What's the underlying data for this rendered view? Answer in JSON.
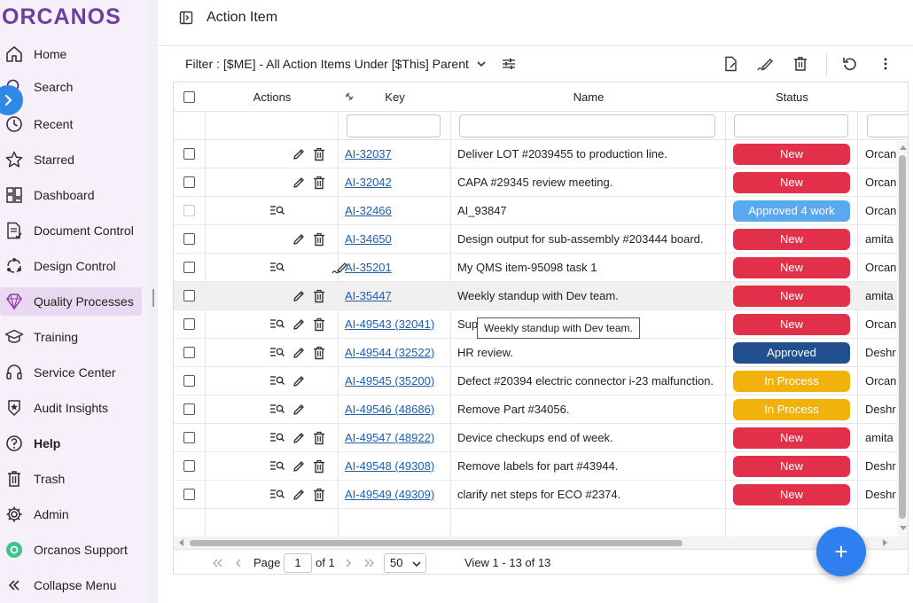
{
  "app": {
    "logo": "ORCANOS"
  },
  "sidebar": {
    "items": [
      {
        "label": "Home",
        "icon": "home-icon"
      },
      {
        "label": "Search",
        "icon": "search-icon"
      },
      {
        "label": "Recent",
        "icon": "clock-icon"
      },
      {
        "label": "Starred",
        "icon": "star-icon"
      },
      {
        "label": "Dashboard",
        "icon": "dashboard-icon"
      },
      {
        "label": "Document Control",
        "icon": "document-icon"
      },
      {
        "label": "Design Control",
        "icon": "design-icon"
      },
      {
        "label": "Quality Processes",
        "icon": "diamond-icon",
        "active": true
      },
      {
        "label": "Training",
        "icon": "graduation-cap-icon"
      },
      {
        "label": "Service Center",
        "icon": "headset-icon"
      },
      {
        "label": "Audit Insights",
        "icon": "badge-icon"
      },
      {
        "label": "Help",
        "icon": "help-icon",
        "bold": true
      },
      {
        "label": "Trash",
        "icon": "trash-icon"
      },
      {
        "label": "Admin",
        "icon": "gear-icon"
      },
      {
        "label": "Orcanos Support",
        "icon": "support-icon"
      },
      {
        "label": "Collapse Menu",
        "icon": "collapse-icon"
      }
    ]
  },
  "header": {
    "title": "Action Item"
  },
  "toolbar": {
    "filter_label": "Filter :",
    "filter_value": "[$ME] - All Action Items Under [$This] Parent"
  },
  "grid": {
    "columns": {
      "actions": "Actions",
      "key": "Key",
      "name": "Name",
      "status": "Status"
    },
    "rows": [
      {
        "key": "AI-32037",
        "name": "Deliver LOT #2039455 to production line.",
        "status": "New",
        "status_color": "#e3304a",
        "owner": "Orcan",
        "actions": [
          "edit",
          "delete"
        ]
      },
      {
        "key": "AI-32042",
        "name": "CAPA #29345 review meeting.",
        "status": "New",
        "status_color": "#e3304a",
        "owner": "Orcan",
        "actions": [
          "edit",
          "delete"
        ]
      },
      {
        "key": "AI-32466",
        "name": "AI_93847",
        "status": "Approved 4 work",
        "status_color": "#5aa8ef",
        "owner": "Orcan",
        "actions": [
          "list"
        ],
        "disabled": true
      },
      {
        "key": "AI-34650",
        "name": "Design output for sub-assembly #203444 board.",
        "status": "New",
        "status_color": "#e3304a",
        "owner": "amita",
        "actions": [
          "edit",
          "delete"
        ]
      },
      {
        "key": "AI-35201",
        "name": "My QMS item-95098 task 1",
        "status": "New",
        "status_color": "#e3304a",
        "owner": "Orcan",
        "actions": [
          "list",
          "sign"
        ]
      },
      {
        "key": "AI-35447",
        "name": "Weekly  standup with Dev team.",
        "status": "New",
        "status_color": "#e3304a",
        "owner": "amita",
        "actions": [
          "edit",
          "delete"
        ],
        "hover": true
      },
      {
        "key": "AI-49543 (32041)",
        "name": "Sup",
        "status": "New",
        "status_color": "#e3304a",
        "owner": "Orcan",
        "actions": [
          "list",
          "edit",
          "delete"
        ]
      },
      {
        "key": "AI-49544 (32522)",
        "name": "HR review.",
        "status": "Approved",
        "status_color": "#22508f",
        "owner": "Deshr",
        "actions": [
          "list",
          "edit",
          "delete"
        ]
      },
      {
        "key": "AI-49545 (35200)",
        "name": "Defect #20394 electric connector i-23 malfunction.",
        "status": "In Process",
        "status_color": "#f2b20c",
        "owner": "Orcan",
        "actions": [
          "list",
          "edit"
        ]
      },
      {
        "key": "AI-49546 (48686)",
        "name": "Remove Part #34056.",
        "status": "In Process",
        "status_color": "#f2b20c",
        "owner": "Deshr",
        "actions": [
          "list",
          "edit"
        ]
      },
      {
        "key": "AI-49547 (48922)",
        "name": "Device checkups end of week.",
        "status": "New",
        "status_color": "#e3304a",
        "owner": "amita",
        "actions": [
          "list",
          "edit",
          "delete"
        ]
      },
      {
        "key": "AI-49548 (49308)",
        "name": "Remove labels for part #43944.",
        "status": "New",
        "status_color": "#e3304a",
        "owner": "Deshr",
        "actions": [
          "list",
          "edit",
          "delete"
        ]
      },
      {
        "key": "AI-49549 (49309)",
        "name": "clarify net steps for ECO #2374.",
        "status": "New",
        "status_color": "#e3304a",
        "owner": "Deshr",
        "actions": [
          "list",
          "edit",
          "delete"
        ]
      }
    ]
  },
  "pager": {
    "page_label": "Page",
    "page_value": "1",
    "of_label": "of 1",
    "page_size": "50",
    "view_text": "View 1 - 13 of 13"
  },
  "tooltip": {
    "text": "Weekly  standup with Dev team."
  },
  "fab": {
    "label": "+"
  }
}
